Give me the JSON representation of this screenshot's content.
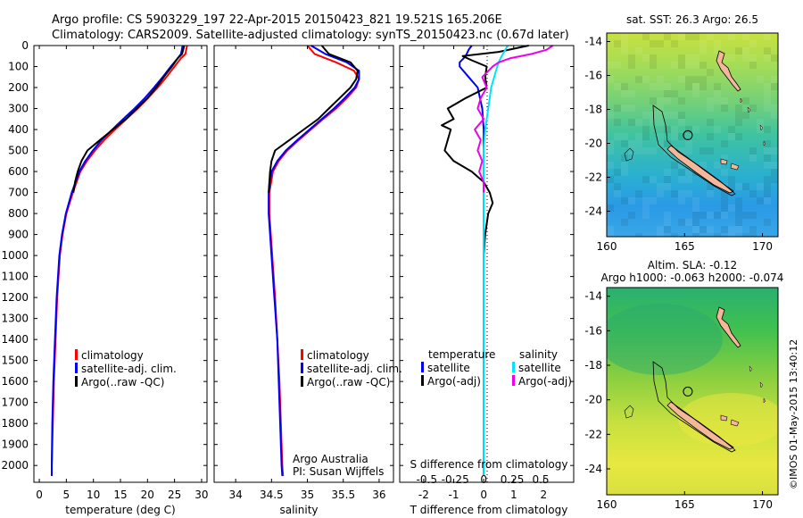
{
  "header": {
    "line1": "Argo profile: CS 5903229_197 22-Apr-2015 20150423_821 19.521S 165.206E",
    "line2": "Climatology: CARS2009. Satellite-adjusted climatology: synTS_20150423.nc (0.67d later)"
  },
  "footer": {
    "credit": "Argo Australia",
    "pi": "PI: Susan Wijffels",
    "imos": "©IMOS 01-May-2015 13:40:12"
  },
  "colors": {
    "red": "#ff0000",
    "blue": "#0000ff",
    "black": "#000000",
    "cyan": "#00e5ff",
    "magenta": "#ee00ee",
    "land": "#f4b79a"
  },
  "chart_data": [
    {
      "type": "line",
      "panel": "temperature",
      "xlabel": "temperature (deg C)",
      "ylabel": "",
      "xlim": [
        -1,
        31
      ],
      "ylim": [
        2080,
        0
      ],
      "xticks": [
        0,
        5,
        10,
        15,
        20,
        25,
        30
      ],
      "yticks": [
        0,
        100,
        200,
        300,
        400,
        500,
        600,
        700,
        800,
        900,
        1000,
        1100,
        1200,
        1300,
        1400,
        1500,
        1600,
        1700,
        1800,
        1900,
        2000
      ],
      "legend": [
        "climatology",
        "satellite-adj. clim.",
        "Argo(..raw -QC)"
      ],
      "series": [
        {
          "color": "red",
          "depth": [
            0,
            40,
            60,
            100,
            150,
            200,
            250,
            300,
            350,
            400,
            450,
            500,
            550,
            600,
            700,
            800,
            900,
            1000,
            1200,
            1400,
            1600,
            1800,
            2000,
            2050
          ],
          "values": [
            27.3,
            27.0,
            26.2,
            25.0,
            23.5,
            21.9,
            20.1,
            18.2,
            16.1,
            14.0,
            12.0,
            10.3,
            8.8,
            7.6,
            6.2,
            5.0,
            4.3,
            3.8,
            3.3,
            3.0,
            2.7,
            2.5,
            2.3,
            2.3
          ]
        },
        {
          "color": "blue",
          "depth": [
            0,
            40,
            60,
            100,
            150,
            200,
            250,
            300,
            350,
            400,
            450,
            500,
            550,
            600,
            700,
            800,
            900,
            1000,
            1200,
            1400,
            1600,
            1800,
            2000,
            2050
          ],
          "values": [
            26.5,
            26.2,
            25.6,
            24.3,
            22.8,
            21.2,
            19.5,
            17.6,
            15.5,
            13.5,
            11.5,
            9.9,
            8.5,
            7.4,
            6.0,
            4.9,
            4.2,
            3.7,
            3.2,
            2.9,
            2.6,
            2.4,
            2.3,
            2.3
          ]
        },
        {
          "color": "black",
          "depth": [
            0,
            40,
            60,
            100,
            150,
            200,
            250,
            300,
            350,
            400,
            450,
            500,
            550,
            600,
            650,
            700
          ],
          "values": [
            26.8,
            26.4,
            25.6,
            24.5,
            23.0,
            21.6,
            20.0,
            18.0,
            16.0,
            13.6,
            11.2,
            8.9,
            7.8,
            7.1,
            6.6,
            6.3
          ]
        }
      ]
    },
    {
      "type": "line",
      "panel": "salinity",
      "xlabel": "salinity",
      "ylabel": "",
      "xlim": [
        33.7,
        36.2
      ],
      "ylim": [
        2080,
        0
      ],
      "xticks": [
        34,
        34.5,
        35,
        35.5,
        36
      ],
      "legend": [
        "climatology",
        "satellite-adj. clim.",
        "Argo(..raw -QC)"
      ],
      "series": [
        {
          "color": "red",
          "depth": [
            0,
            40,
            80,
            120,
            160,
            200,
            250,
            300,
            350,
            400,
            450,
            500,
            550,
            600,
            700,
            800,
            900,
            1000,
            1200,
            1400,
            1600,
            1800,
            2000,
            2050
          ],
          "values": [
            35.0,
            35.1,
            35.4,
            35.65,
            35.72,
            35.68,
            35.55,
            35.4,
            35.22,
            35.05,
            34.88,
            34.72,
            34.6,
            34.52,
            34.47,
            34.47,
            34.49,
            34.51,
            34.55,
            34.58,
            34.61,
            34.63,
            34.65,
            34.66
          ]
        },
        {
          "color": "blue",
          "depth": [
            0,
            40,
            80,
            120,
            160,
            200,
            250,
            300,
            350,
            400,
            450,
            500,
            550,
            600,
            700,
            800,
            900,
            1000,
            1200,
            1400,
            1600,
            1800,
            2000,
            2050
          ],
          "values": [
            35.05,
            35.25,
            35.55,
            35.72,
            35.72,
            35.66,
            35.52,
            35.37,
            35.2,
            35.03,
            34.86,
            34.7,
            34.58,
            34.5,
            34.46,
            34.46,
            34.48,
            34.5,
            34.54,
            34.58,
            34.6,
            34.62,
            34.64,
            34.65
          ]
        },
        {
          "color": "black",
          "depth": [
            0,
            40,
            80,
            120,
            160,
            200,
            250,
            300,
            350,
            400,
            450,
            500,
            550,
            600,
            650,
            700
          ],
          "values": [
            35.2,
            35.3,
            35.6,
            35.7,
            35.68,
            35.6,
            35.45,
            35.3,
            35.15,
            34.95,
            34.75,
            34.55,
            34.5,
            34.48,
            34.47,
            34.46
          ]
        }
      ]
    },
    {
      "type": "line",
      "panel": "differences",
      "xlabel": "T difference from climatology",
      "ylabel": "",
      "x2label": "S difference from climatology",
      "xlim": [
        -2.8,
        3.0
      ],
      "ylim": [
        2080,
        0
      ],
      "xticks": [
        -2,
        -1,
        0,
        1,
        2
      ],
      "x2ticks": [
        -0.5,
        -0.25,
        0,
        0.25,
        0.5
      ],
      "x2tick_labels": [
        "-0.5",
        "-0.25",
        "0",
        "0.25",
        "0.5"
      ],
      "legend_titles": [
        "temperature",
        "salinity"
      ],
      "legend_left": [
        "satellite",
        "Argo(-adj)"
      ],
      "legend_right": [
        "satellite",
        "Argo(-adj)"
      ],
      "series": [
        {
          "color": "blue",
          "depth": [
            0,
            20,
            50,
            80,
            100,
            150,
            200,
            300,
            400,
            500,
            600,
            700,
            800,
            1000,
            1500,
            2000,
            2050
          ],
          "values": [
            -0.4,
            -0.5,
            -0.6,
            -0.8,
            -0.8,
            -0.5,
            -0.2,
            -0.05,
            0,
            0,
            0,
            0,
            0,
            0,
            0,
            0,
            0
          ]
        },
        {
          "color": "black",
          "depth": [
            0,
            30,
            50,
            70,
            100,
            150,
            200,
            250,
            300,
            350,
            380,
            400,
            450,
            500,
            550,
            600,
            650,
            700,
            750,
            800,
            850,
            900,
            1000,
            1500,
            2000,
            2050
          ],
          "values": [
            1.5,
            0.5,
            -0.7,
            -0.4,
            0.1,
            0.05,
            0.1,
            -0.6,
            -1.2,
            -1.0,
            -1.4,
            -1.1,
            -1.2,
            -1.3,
            -1.0,
            -0.4,
            0.0,
            0.2,
            0.3,
            0.15,
            0.1,
            0.05,
            0,
            0,
            0,
            0
          ]
        },
        {
          "color": "cyan",
          "depth": [
            0,
            50,
            80,
            100,
            150,
            200,
            250,
            300,
            350,
            400,
            500,
            600,
            700,
            800,
            1000,
            1500,
            2000,
            2050
          ],
          "values": [
            0.8,
            0.6,
            0.5,
            0.45,
            0.35,
            0.25,
            0.2,
            0.15,
            0.1,
            0.05,
            0,
            0,
            0,
            0,
            0,
            0,
            0,
            0
          ]
        },
        {
          "color": "magenta",
          "depth": [
            0,
            20,
            40,
            60,
            80,
            100,
            150,
            200,
            250,
            300,
            350,
            400,
            450,
            500,
            550,
            600,
            650,
            700
          ],
          "values": [
            2.3,
            2.1,
            1.6,
            0.9,
            0.5,
            0.3,
            -0.05,
            0.1,
            -0.1,
            -0.2,
            0.0,
            -0.3,
            -0.1,
            -0.2,
            -0.05,
            -0.15,
            0.0,
            0.0
          ]
        }
      ]
    },
    {
      "type": "heatmap",
      "panel": "sst-map",
      "title": "sat. SST: 26.3 Argo: 26.5",
      "xlim": [
        160,
        171
      ],
      "ylim": [
        -25.5,
        -13.5
      ],
      "xticks": [
        160,
        165,
        170
      ],
      "yticks": [
        -14,
        -16,
        -18,
        -20,
        -22,
        -24
      ],
      "argo_position": [
        165.206,
        -19.521
      ]
    },
    {
      "type": "heatmap",
      "panel": "sla-map",
      "title": "Altim. SLA: -0.12",
      "subtitle": "Argo h1000: -0.063 h2000: -0.074",
      "xlim": [
        160,
        171
      ],
      "ylim": [
        -25.5,
        -13.5
      ],
      "xticks": [
        160,
        165,
        170
      ],
      "yticks": [
        -14,
        -16,
        -18,
        -20,
        -22,
        -24
      ],
      "argo_position": [
        165.206,
        -19.521
      ]
    }
  ]
}
